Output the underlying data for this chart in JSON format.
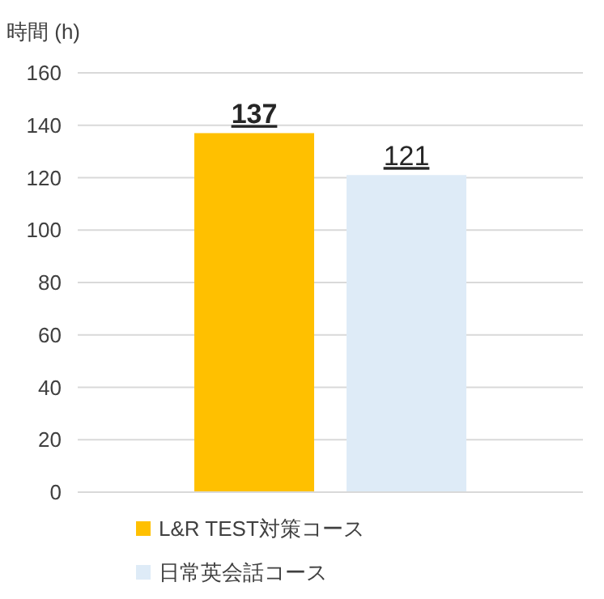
{
  "chart_data": {
    "type": "bar",
    "ylabel": "時間 (h)",
    "categories": [
      null
    ],
    "series": [
      {
        "name": "L&R TEST対策コース",
        "color": "#ffc000",
        "values": [
          137
        ]
      },
      {
        "name": "日常英会話コース",
        "color": "#deebf7",
        "values": [
          121
        ]
      }
    ],
    "ylim": [
      0,
      160
    ],
    "yticks": [
      0,
      20,
      40,
      60,
      80,
      100,
      120,
      140,
      160
    ],
    "grid": "y",
    "legend": "bottom",
    "data_labels": true
  }
}
